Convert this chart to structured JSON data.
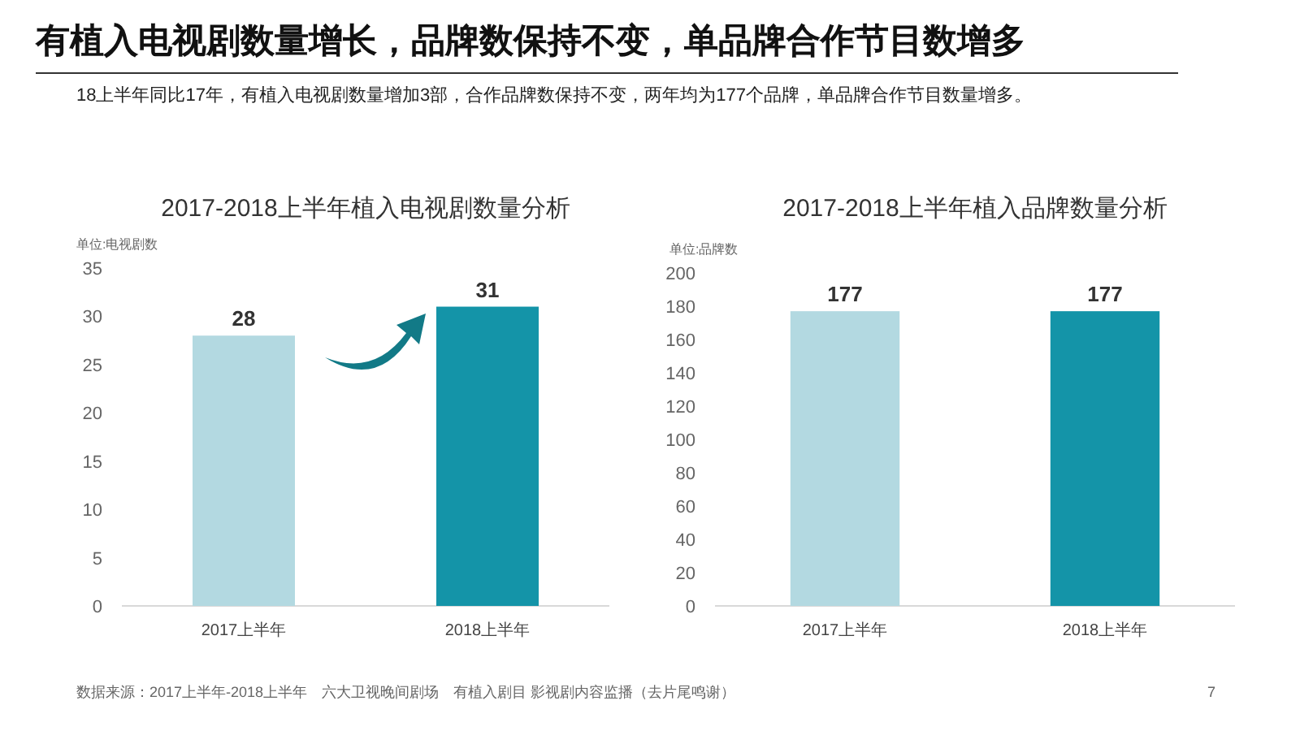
{
  "chart_data": [
    {
      "type": "other",
      "title": "有植入电视剧数量增长，品牌数保持不变，单品牌合作节目数增多",
      "subtitle": "18上半年同比17年，有植入电视剧数量增加3部，合作品牌数保持不变，两年均为177个品牌，单品牌合作节目数量增多。",
      "annotations": [
        "数据来源：2017上半年-2018上半年　六大卫视晚间剧场　有植入剧目 影视剧内容监播（去片尾鸣谢）",
        "7"
      ]
    },
    {
      "type": "bar",
      "title": "2017-2018上半年植入电视剧数量分析",
      "ylabel": "单位:电视剧数",
      "categories": [
        "2017上半年",
        "2018上半年"
      ],
      "values": [
        28,
        31
      ],
      "colors": [
        "#b3d9e1",
        "#1494a8"
      ],
      "ylim": [
        0,
        35
      ],
      "yticks": [
        0,
        5,
        10,
        15,
        20,
        25,
        30,
        35
      ],
      "data_labels": true
    },
    {
      "type": "bar",
      "title": "2017-2018上半年植入品牌数量分析",
      "ylabel": "单位:品牌数",
      "categories": [
        "2017上半年",
        "2018上半年"
      ],
      "values": [
        177,
        177
      ],
      "colors": [
        "#b3d9e1",
        "#1494a8"
      ],
      "ylim": [
        0,
        200
      ],
      "yticks": [
        0,
        20,
        40,
        60,
        80,
        100,
        120,
        140,
        160,
        180,
        200
      ],
      "data_labels": true
    }
  ]
}
